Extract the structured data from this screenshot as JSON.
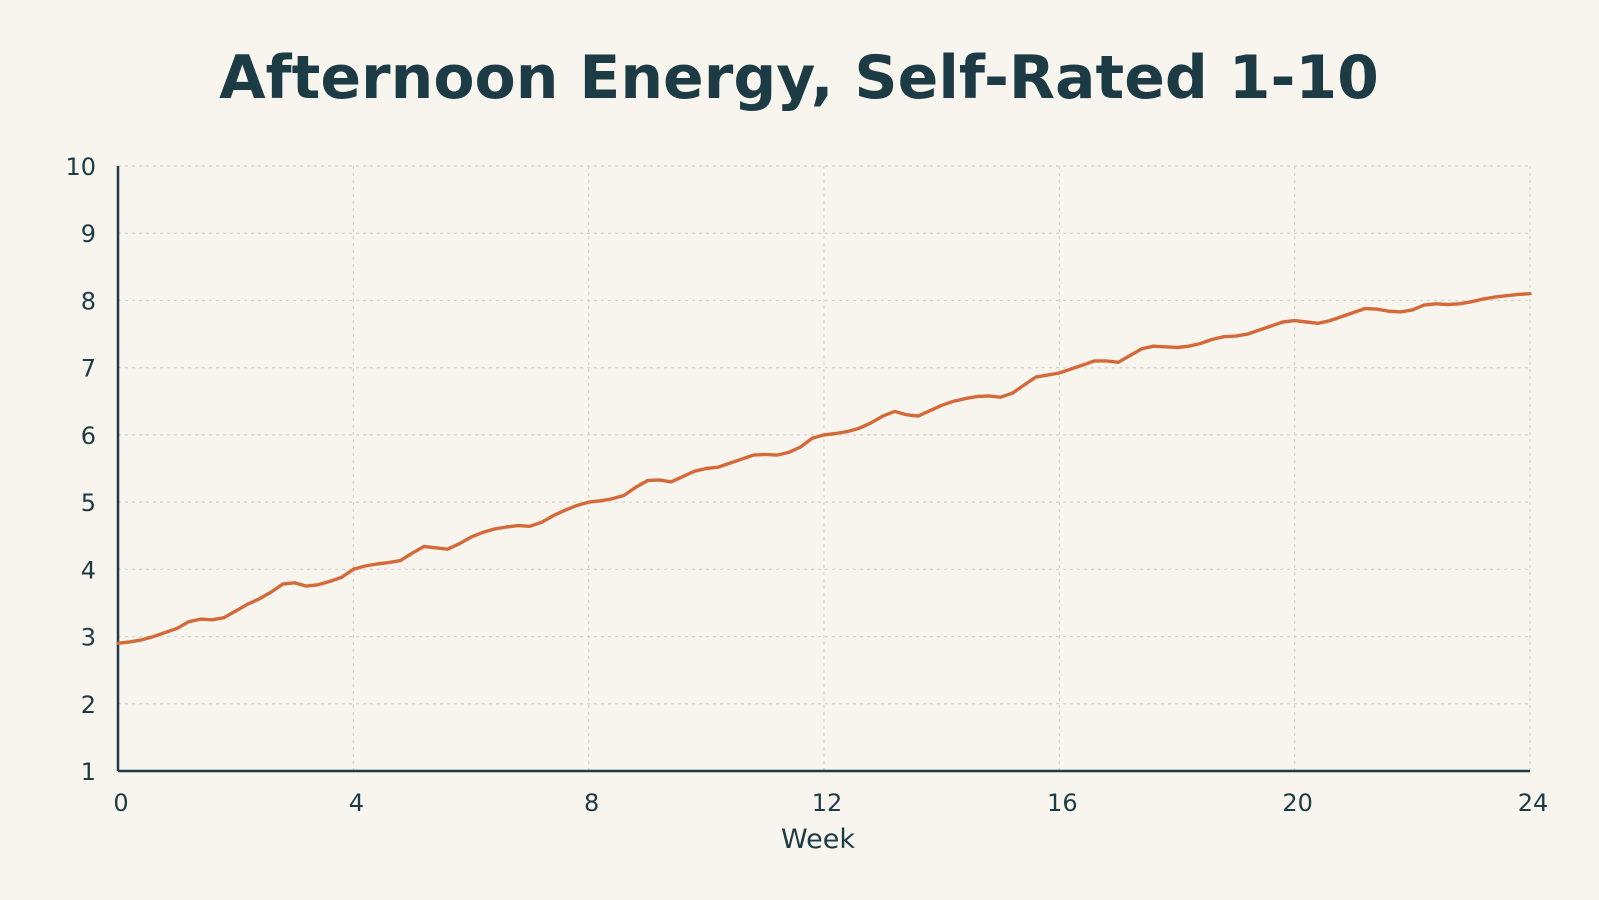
{
  "chart_data": {
    "type": "line",
    "title": "Afternoon Energy, Self-Rated 1-10",
    "xlabel": "Week",
    "ylabel": "",
    "xlim": [
      0,
      24
    ],
    "ylim": [
      1,
      10
    ],
    "x_ticks": [
      "0",
      "4",
      "8",
      "12",
      "16",
      "20",
      "24"
    ],
    "y_ticks": [
      "1",
      "2",
      "3",
      "4",
      "5",
      "6",
      "7",
      "8",
      "9",
      "10"
    ],
    "grid": true,
    "legend": "none",
    "series": [
      {
        "color": "#d4693a",
        "x": [
          0,
          0.2,
          0.4,
          0.6,
          0.8,
          1.0,
          1.2,
          1.4,
          1.6,
          1.8,
          2.0,
          2.2,
          2.4,
          2.6,
          2.8,
          3.0,
          3.2,
          3.4,
          3.6,
          3.8,
          4.0,
          4.2,
          4.4,
          4.6,
          4.8,
          5.0,
          5.2,
          5.4,
          5.6,
          5.8,
          6.0,
          6.2,
          6.4,
          6.6,
          6.8,
          7.0,
          7.2,
          7.4,
          7.6,
          7.8,
          8.0,
          8.2,
          8.4,
          8.6,
          8.8,
          9.0,
          9.2,
          9.4,
          9.6,
          9.8,
          10.0,
          10.2,
          10.4,
          10.6,
          10.8,
          11.0,
          11.2,
          11.4,
          11.6,
          11.8,
          12.0,
          12.2,
          12.4,
          12.6,
          12.8,
          13.0,
          13.2,
          13.4,
          13.6,
          13.8,
          14.0,
          14.2,
          14.4,
          14.6,
          14.8,
          15.0,
          15.2,
          15.4,
          15.6,
          15.8,
          16.0,
          16.2,
          16.4,
          16.6,
          16.8,
          17.0,
          17.2,
          17.4,
          17.6,
          17.8,
          18.0,
          18.2,
          18.4,
          18.6,
          18.8,
          19.0,
          19.2,
          19.4,
          19.6,
          19.8,
          20.0,
          20.2,
          20.4,
          20.6,
          20.8,
          21.0,
          21.2,
          21.4,
          21.6,
          21.8,
          22.0,
          22.2,
          22.4,
          22.6,
          22.8,
          23.0,
          23.2,
          23.4,
          23.6,
          23.8,
          24.0
        ],
        "values": [
          2.9,
          2.92,
          2.95,
          3.0,
          3.06,
          3.12,
          3.22,
          3.26,
          3.25,
          3.28,
          3.38,
          3.48,
          3.56,
          3.66,
          3.78,
          3.8,
          3.75,
          3.77,
          3.82,
          3.88,
          4.0,
          4.05,
          4.08,
          4.1,
          4.13,
          4.24,
          4.34,
          4.32,
          4.3,
          4.38,
          4.48,
          4.55,
          4.6,
          4.63,
          4.65,
          4.64,
          4.7,
          4.8,
          4.88,
          4.95,
          5.0,
          5.02,
          5.05,
          5.1,
          5.22,
          5.32,
          5.33,
          5.3,
          5.38,
          5.46,
          5.5,
          5.52,
          5.58,
          5.64,
          5.7,
          5.71,
          5.7,
          5.74,
          5.82,
          5.95,
          6.0,
          6.02,
          6.05,
          6.1,
          6.18,
          6.28,
          6.35,
          6.3,
          6.28,
          6.36,
          6.44,
          6.5,
          6.54,
          6.57,
          6.58,
          6.56,
          6.62,
          6.74,
          6.86,
          6.89,
          6.92,
          6.98,
          7.04,
          7.1,
          7.1,
          7.08,
          7.18,
          7.28,
          7.32,
          7.31,
          7.3,
          7.32,
          7.36,
          7.42,
          7.46,
          7.47,
          7.5,
          7.56,
          7.62,
          7.68,
          7.7,
          7.68,
          7.66,
          7.7,
          7.76,
          7.82,
          7.88,
          7.87,
          7.84,
          7.83,
          7.86,
          7.93,
          7.95,
          7.94,
          7.95,
          7.98,
          8.02,
          8.05,
          8.07,
          8.09,
          8.1
        ]
      }
    ]
  },
  "style": {
    "background": "#f8f5ee",
    "text_color": "#1d3b45",
    "axis_color": "#1d3b45",
    "grid_color": "#d0d4d2",
    "line_color": "#d4693a"
  }
}
